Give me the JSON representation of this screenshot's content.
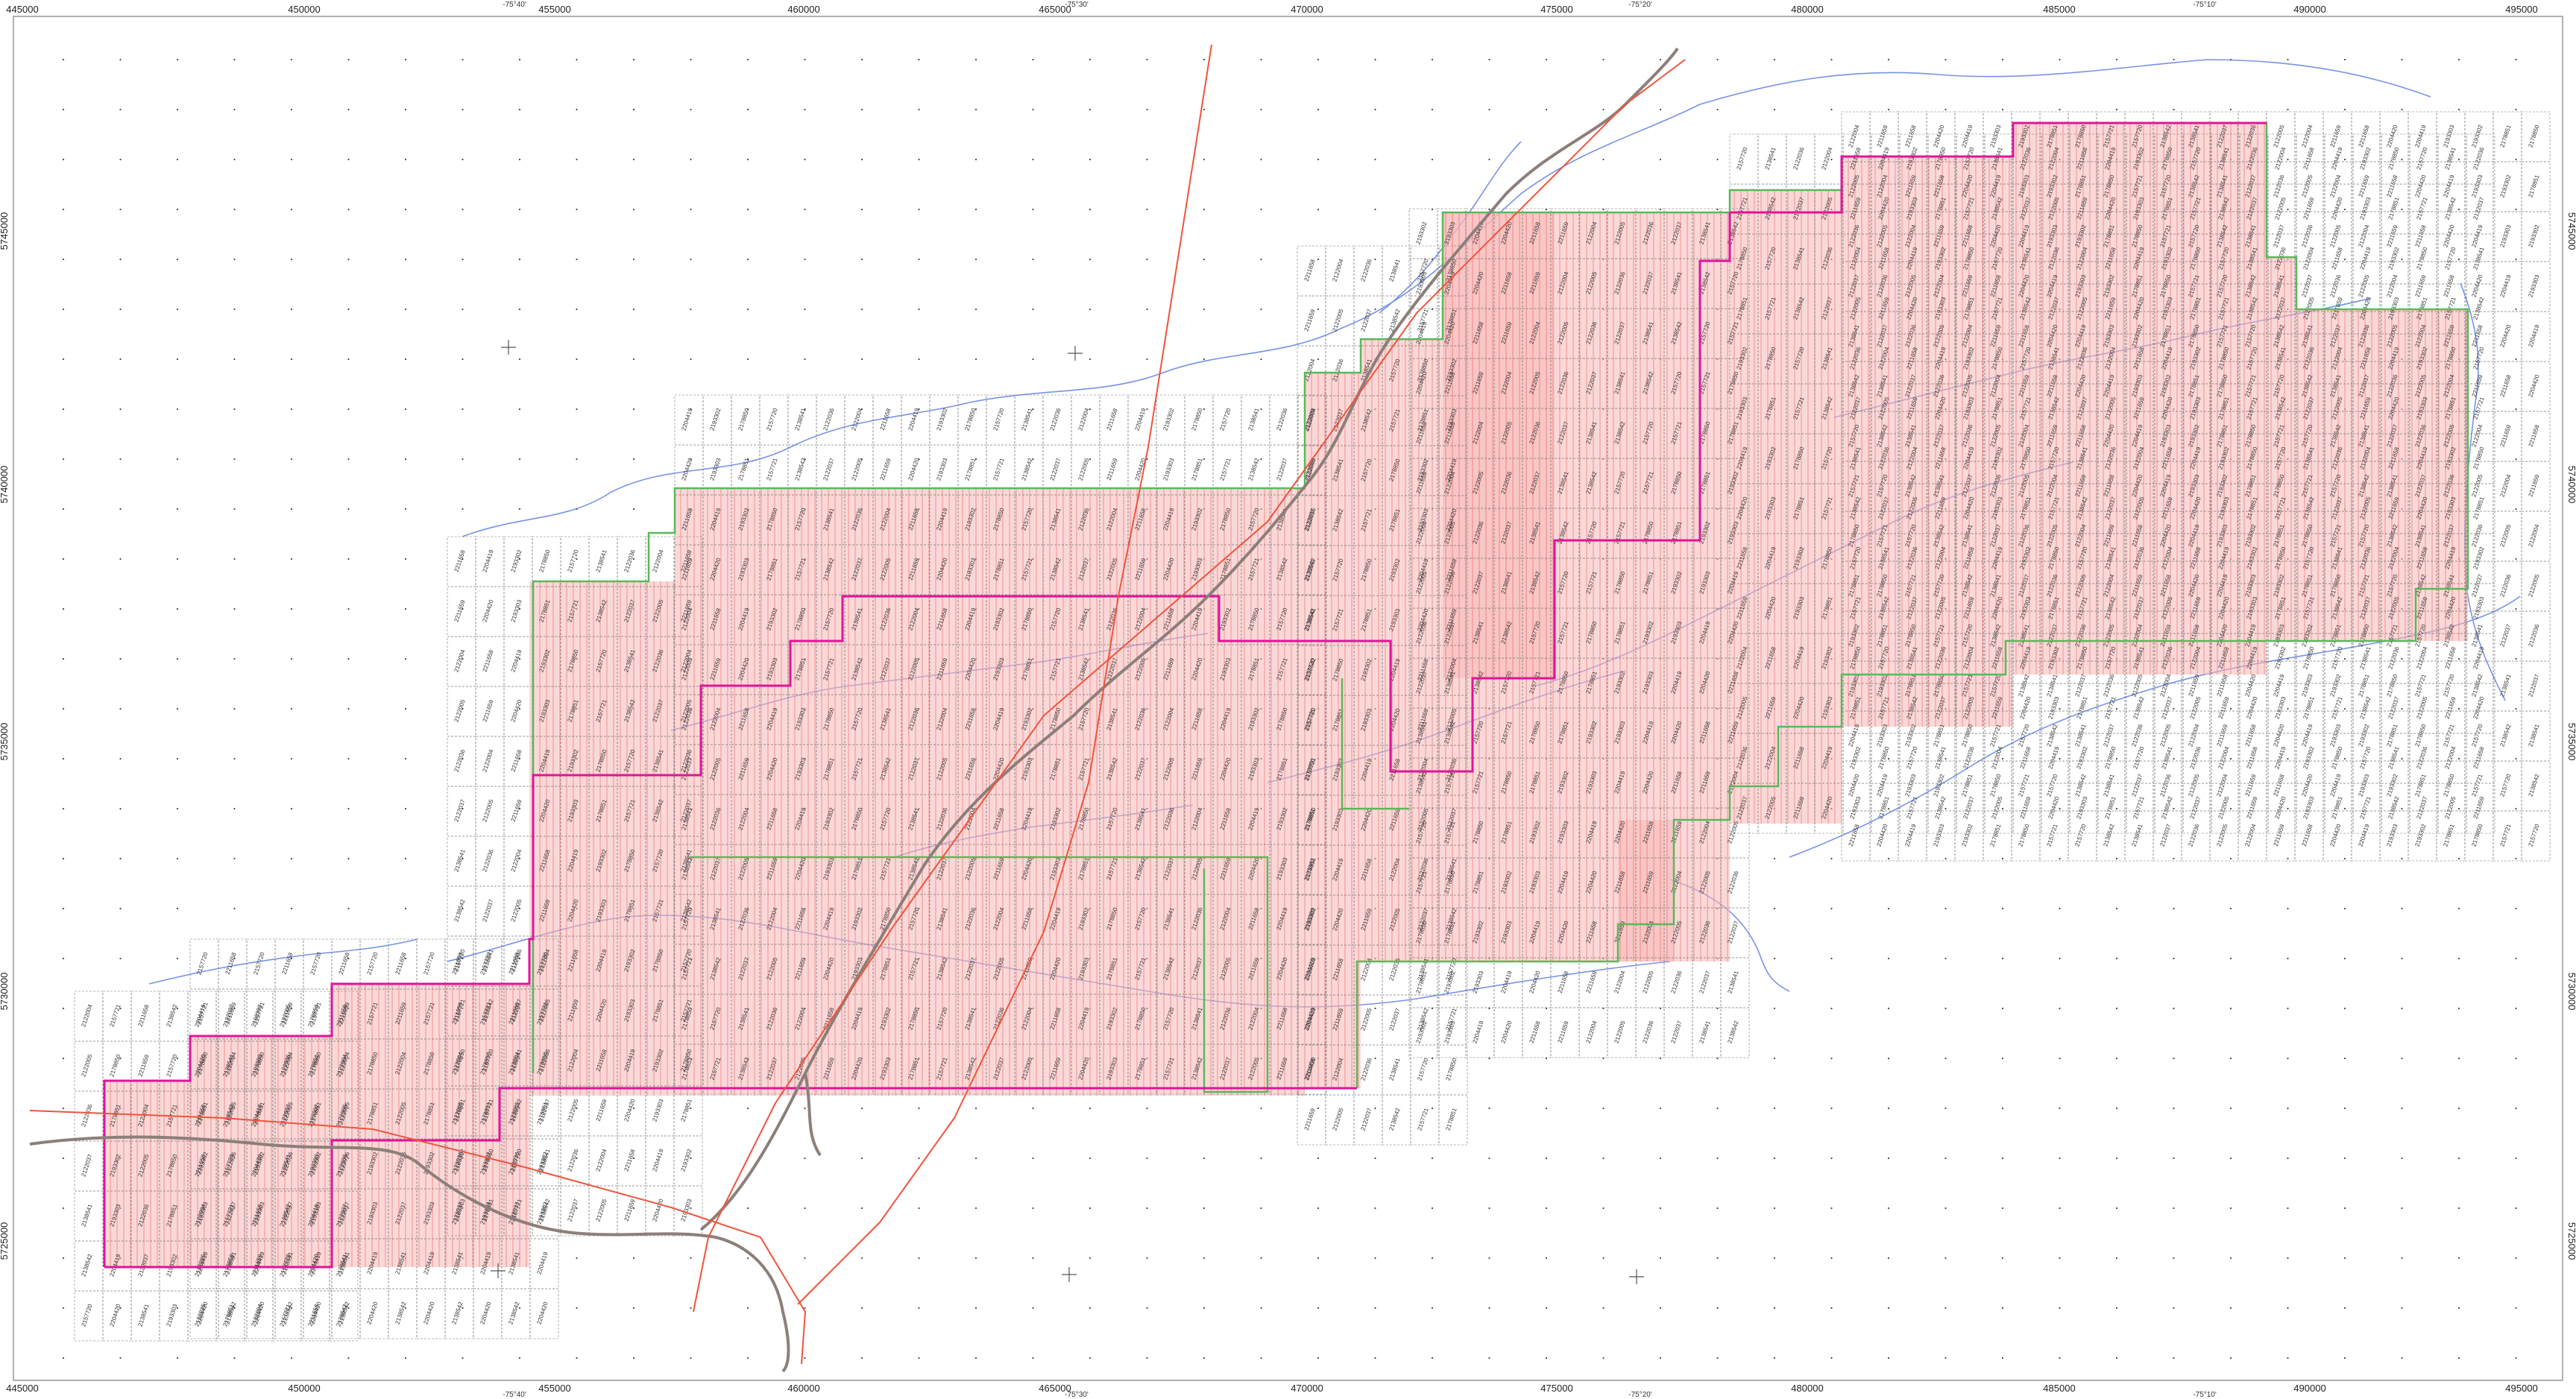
{
  "map": {
    "easting_labels": [
      "445000",
      "450000",
      "455000",
      "460000",
      "465000",
      "470000",
      "475000",
      "480000",
      "485000",
      "490000",
      "495000"
    ],
    "northing_labels": [
      "5745000",
      "5740000",
      "5735000",
      "5730000",
      "5725000"
    ],
    "longitude_labels": [
      "-75°40'",
      "-75°30'",
      "-75°20'",
      "-75°10'"
    ],
    "colors": {
      "claim_fill": "#f7b8b8",
      "claim_hatch": "#f08080",
      "cell_grid": "#777777",
      "boundary_magenta": "#e0149a",
      "boundary_green": "#5bb85b",
      "water": "#4a6fe0",
      "road": "#8c7f7a",
      "line_red": "#f0543c",
      "frame": "#999999"
    },
    "cell_label_samples": [
      "2122004",
      "2122005",
      "2122036",
      "2122037",
      "2138541",
      "2138542",
      "2157720",
      "2157721",
      "2178850",
      "2178851",
      "2193302",
      "2193303",
      "2204419",
      "2204420",
      "2211658",
      "2211659"
    ]
  }
}
